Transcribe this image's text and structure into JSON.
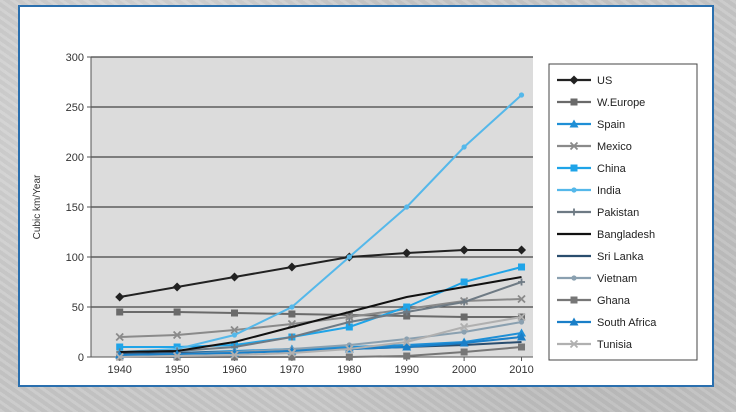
{
  "chart_data": {
    "type": "line",
    "ylabel": "Cubic km/Year",
    "xlabel": "",
    "title": "",
    "xlim": [
      1935,
      2012
    ],
    "ylim": [
      0,
      300
    ],
    "y_ticks": [
      0,
      50,
      100,
      150,
      200,
      250,
      300
    ],
    "x_ticks": [
      1940,
      1950,
      1960,
      1970,
      1980,
      1990,
      2000,
      2010
    ],
    "grid": "horizontal",
    "legend_position": "right",
    "x": [
      1940,
      1950,
      1960,
      1970,
      1980,
      1990,
      2000,
      2010
    ],
    "series": [
      {
        "name": "US",
        "color": "#222222",
        "marker": "diamond",
        "values": [
          60,
          70,
          80,
          90,
          100,
          104,
          107,
          107
        ]
      },
      {
        "name": "W.Europe",
        "color": "#6a6a6a",
        "marker": "square",
        "values": [
          45,
          45,
          44,
          43,
          42,
          41,
          40,
          40
        ]
      },
      {
        "name": "Spain",
        "color": "#1f8fd6",
        "marker": "triangle",
        "values": [
          3,
          4,
          6,
          8,
          10,
          12,
          15,
          24
        ]
      },
      {
        "name": "Mexico",
        "color": "#8a8a8a",
        "marker": "x",
        "values": [
          20,
          22,
          27,
          33,
          40,
          48,
          56,
          58
        ]
      },
      {
        "name": "China",
        "color": "#1fa4e8",
        "marker": "square",
        "values": [
          10,
          10,
          12,
          20,
          30,
          50,
          75,
          90
        ]
      },
      {
        "name": "India",
        "color": "#55b8ea",
        "marker": "dot",
        "values": [
          5,
          8,
          22,
          50,
          100,
          150,
          210,
          262
        ]
      },
      {
        "name": "Pakistan",
        "color": "#6e7a84",
        "marker": "plus",
        "values": [
          5,
          6,
          10,
          20,
          35,
          45,
          55,
          75
        ]
      },
      {
        "name": "Bangladesh",
        "color": "#111111",
        "marker": "none",
        "values": [
          5,
          6,
          15,
          30,
          45,
          60,
          70,
          80
        ]
      },
      {
        "name": "Sri Lanka",
        "color": "#2a4d6e",
        "marker": "none",
        "values": [
          3,
          4,
          5,
          6,
          8,
          10,
          12,
          15
        ]
      },
      {
        "name": "Vietnam",
        "color": "#8aa0b0",
        "marker": "dot",
        "values": [
          2,
          3,
          5,
          8,
          12,
          18,
          25,
          35
        ]
      },
      {
        "name": "Ghana",
        "color": "#777777",
        "marker": "square",
        "values": [
          0,
          0,
          0,
          0,
          0,
          1,
          5,
          10
        ]
      },
      {
        "name": "South Africa",
        "color": "#1a7fc8",
        "marker": "triangle",
        "values": [
          2,
          3,
          4,
          6,
          8,
          10,
          14,
          20
        ]
      },
      {
        "name": "Tunisia",
        "color": "#b0b0b0",
        "marker": "x",
        "values": [
          0,
          1,
          2,
          4,
          8,
          15,
          30,
          40
        ]
      }
    ]
  }
}
